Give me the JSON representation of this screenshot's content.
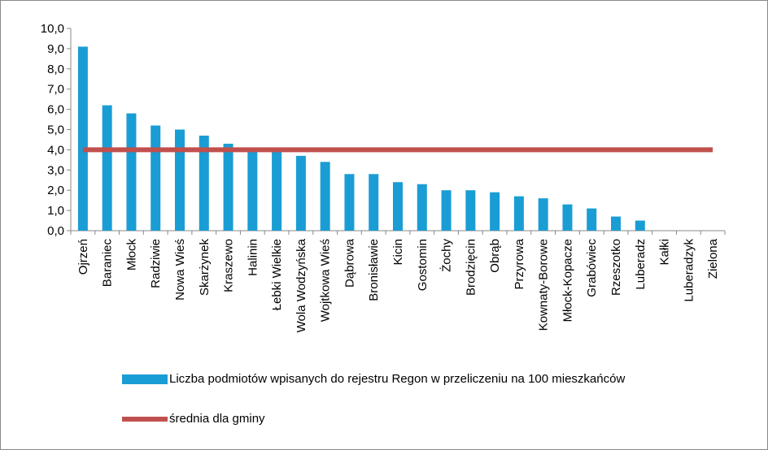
{
  "chart_data": {
    "type": "bar",
    "categories": [
      "Ojrzeń",
      "Baraniec",
      "Młock",
      "Radziwie",
      "Nowa Wieś",
      "Skarżynek",
      "Kraszewo",
      "Halinin",
      "Łebki Wielkie",
      "Wola Wodzyńska",
      "Wojtkowa Wieś",
      "Dąbrowa",
      "Bronisławie",
      "Kicin",
      "Gostomin",
      "Żochy",
      "Brodzięcin",
      "Obrąb",
      "Przyrowa",
      "Kownaty-Borowe",
      "Młock-Kopacze",
      "Grabówiec",
      "Rzeszotko",
      "Luberadz",
      "Kałki",
      "Luberadzyk",
      "Zielona"
    ],
    "series": [
      {
        "name": "Liczba podmiotów wpisanych do rejestru Regon w przeliczeniu na 100 mieszkańców",
        "type": "bar",
        "color": "#1a9dd4",
        "values": [
          9.1,
          6.2,
          5.8,
          5.2,
          5.0,
          4.7,
          4.3,
          3.9,
          3.9,
          3.7,
          3.4,
          2.8,
          2.8,
          2.4,
          2.3,
          2.0,
          2.0,
          1.9,
          1.7,
          1.6,
          1.3,
          1.1,
          0.7,
          0.5,
          0,
          0,
          0
        ]
      },
      {
        "name": "średnia dla gminy",
        "type": "line",
        "color": "#c0504d",
        "values": [
          4.0,
          4.0,
          4.0,
          4.0,
          4.0,
          4.0,
          4.0,
          4.0,
          4.0,
          4.0,
          4.0,
          4.0,
          4.0,
          4.0,
          4.0,
          4.0,
          4.0,
          4.0,
          4.0,
          4.0,
          4.0,
          4.0,
          4.0,
          4.0,
          4.0,
          4.0,
          4.0
        ]
      }
    ],
    "ylim": [
      0,
      10
    ],
    "yticks": [
      {
        "value": 0,
        "label": "0,0"
      },
      {
        "value": 1,
        "label": "1,0"
      },
      {
        "value": 2,
        "label": "2,0"
      },
      {
        "value": 3,
        "label": "3,0"
      },
      {
        "value": 4,
        "label": "4,0"
      },
      {
        "value": 5,
        "label": "5,0"
      },
      {
        "value": 6,
        "label": "6,0"
      },
      {
        "value": 7,
        "label": "7,0"
      },
      {
        "value": 8,
        "label": "8,0"
      },
      {
        "value": 9,
        "label": "9,0"
      },
      {
        "value": 10,
        "label": "10,0"
      }
    ],
    "legend": "bottom"
  }
}
